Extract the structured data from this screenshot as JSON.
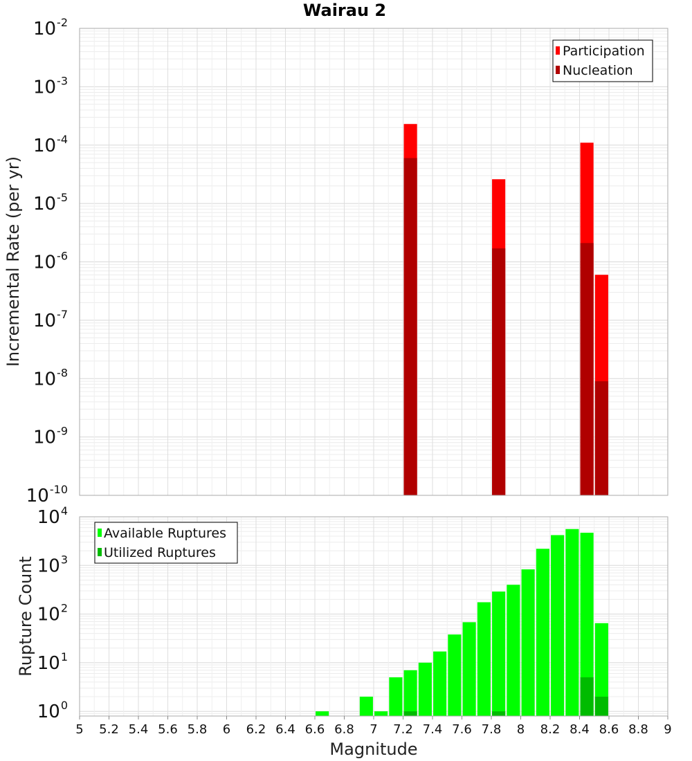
{
  "chart_data": [
    {
      "type": "bar",
      "title": "Wairau 2",
      "xlabel": "",
      "ylabel": "Incremental Rate (per yr)",
      "yscale": "log",
      "ylim": [
        1e-10,
        0.01
      ],
      "xlim": [
        5,
        9
      ],
      "y_tick_labels": [
        {
          "value": 1e-10,
          "base": "10",
          "exp": "-10"
        },
        {
          "value": 1e-09,
          "base": "10",
          "exp": "-9"
        },
        {
          "value": 1e-08,
          "base": "10",
          "exp": "-8"
        },
        {
          "value": 1e-07,
          "base": "10",
          "exp": "-7"
        },
        {
          "value": 1e-06,
          "base": "10",
          "exp": "-6"
        },
        {
          "value": 1e-05,
          "base": "10",
          "exp": "-5"
        },
        {
          "value": 0.0001,
          "base": "10",
          "exp": "-4"
        },
        {
          "value": 0.001,
          "base": "10",
          "exp": "-3"
        },
        {
          "value": 0.01,
          "base": "10",
          "exp": "-2"
        }
      ],
      "grid": true,
      "legend": "top-right",
      "series": [
        {
          "name": "Participation",
          "color": "#ff0000",
          "x": [
            7.25,
            7.85,
            8.45,
            8.55
          ],
          "values": [
            0.00023,
            2.6e-05,
            0.00011,
            6e-07
          ]
        },
        {
          "name": "Nucleation",
          "color": "#b00000",
          "x": [
            7.25,
            7.85,
            8.45,
            8.55
          ],
          "values": [
            6e-05,
            1.7e-06,
            2.1e-06,
            9e-09
          ]
        }
      ]
    },
    {
      "type": "bar",
      "title": "",
      "xlabel": "Magnitude",
      "ylabel": "Rupture Count",
      "yscale": "log",
      "ylim": [
        0.8,
        10000
      ],
      "xlim": [
        5,
        9
      ],
      "x_tick_labels": [
        "5",
        "5.2",
        "5.4",
        "5.6",
        "5.8",
        "6",
        "6.2",
        "6.4",
        "6.6",
        "6.8",
        "7",
        "7.2",
        "7.4",
        "7.6",
        "7.8",
        "8",
        "8.2",
        "8.4",
        "8.6",
        "8.8",
        "9"
      ],
      "y_tick_labels": [
        {
          "value": 1,
          "base": "10",
          "exp": "0"
        },
        {
          "value": 10,
          "base": "10",
          "exp": "1"
        },
        {
          "value": 100,
          "base": "10",
          "exp": "2"
        },
        {
          "value": 1000,
          "base": "10",
          "exp": "3"
        },
        {
          "value": 10000,
          "base": "10",
          "exp": "4"
        }
      ],
      "grid": true,
      "legend": "top-left",
      "series": [
        {
          "name": "Available Ruptures",
          "color": "#00ff00",
          "x": [
            6.65,
            6.95,
            7.05,
            7.15,
            7.25,
            7.35,
            7.45,
            7.55,
            7.65,
            7.75,
            7.85,
            7.95,
            8.05,
            8.15,
            8.25,
            8.35,
            8.45,
            8.55
          ],
          "values": [
            1,
            2,
            1,
            5,
            7,
            10,
            17,
            38,
            68,
            175,
            290,
            400,
            830,
            2200,
            4200,
            5600,
            4700,
            65
          ]
        },
        {
          "name": "Utilized Ruptures",
          "color": "#00bb00",
          "x": [
            7.25,
            7.85,
            8.45,
            8.55
          ],
          "values": [
            1,
            1,
            5,
            2
          ]
        }
      ]
    }
  ]
}
